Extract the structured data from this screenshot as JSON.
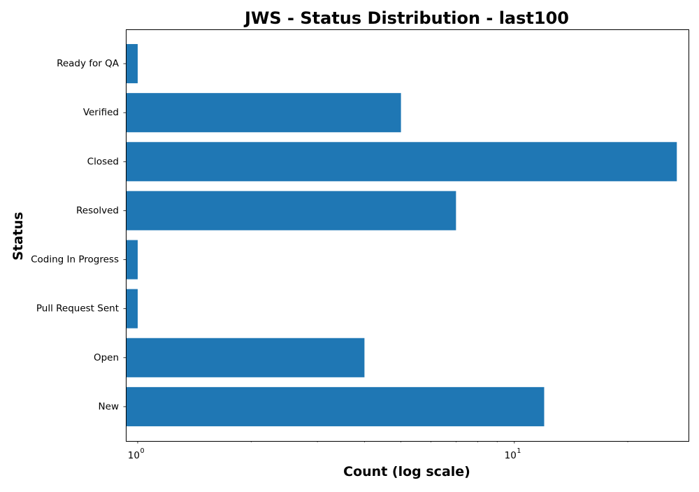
{
  "chart_data": {
    "type": "bar",
    "orientation": "horizontal",
    "title": "JWS - Status Distribution - last100",
    "xlabel": "Count (log scale)",
    "ylabel": "Status",
    "x_scale": "log",
    "xlim": [
      0.93,
      29.0
    ],
    "x_ticks": [
      {
        "value": 1,
        "base": "10",
        "exponent": "0"
      },
      {
        "value": 10,
        "base": "10",
        "exponent": "1"
      }
    ],
    "x_minor_ticks": [
      2,
      3,
      4,
      5,
      6,
      7,
      8,
      9,
      20
    ],
    "categories": [
      "New",
      "Open",
      "Pull Request Sent",
      "Coding In Progress",
      "Resolved",
      "Closed",
      "Verified",
      "Ready for QA"
    ],
    "values": [
      12,
      4,
      1,
      1,
      7,
      27,
      5,
      1
    ],
    "bar_color": "#1f77b4",
    "grid": false,
    "legend": "none"
  }
}
